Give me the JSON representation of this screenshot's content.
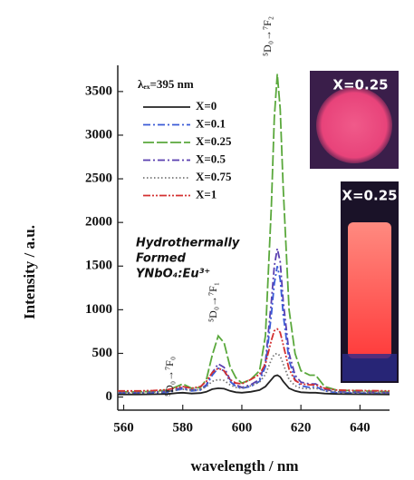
{
  "chart_data": {
    "type": "line",
    "xlabel": "wavelength / nm",
    "ylabel": "Intensity / a.u.",
    "legend_title": "λₑₓ=395 nm",
    "annotations": [
      "Hydrothermally",
      "Formed",
      "YNbO₄:Eu³⁺"
    ],
    "transitions": [
      "⁵D₀→⁷F₀",
      "⁵D₀→⁷F₁",
      "⁵D₀→⁷F₂"
    ],
    "xlim": [
      558,
      650
    ],
    "xticks": [
      560,
      580,
      600,
      620,
      640
    ],
    "ylim": [
      -150,
      3800
    ],
    "yticks": [
      0,
      500,
      1000,
      1500,
      2000,
      2500,
      3000,
      3500
    ],
    "x": [
      558,
      565,
      570,
      575,
      578,
      580,
      583,
      586,
      588,
      590,
      592,
      594,
      596,
      598,
      600,
      603,
      606,
      608,
      610,
      611,
      612,
      613,
      614,
      616,
      618,
      620,
      623,
      625,
      628,
      632,
      640,
      650
    ],
    "series": [
      {
        "name": "X=0",
        "color": "#222222",
        "dash": "solid",
        "values": [
          30,
          30,
          32,
          35,
          45,
          50,
          40,
          45,
          60,
          90,
          100,
          95,
          70,
          55,
          50,
          60,
          80,
          120,
          200,
          240,
          250,
          230,
          180,
          100,
          70,
          55,
          50,
          50,
          40,
          35,
          32,
          30
        ]
      },
      {
        "name": "X=0.1",
        "color": "#3b5bd6",
        "dash": "dashdot",
        "values": [
          40,
          40,
          45,
          55,
          80,
          95,
          70,
          80,
          130,
          250,
          330,
          300,
          180,
          120,
          100,
          120,
          180,
          350,
          950,
          1300,
          1500,
          1350,
          950,
          420,
          200,
          130,
          110,
          120,
          70,
          50,
          45,
          40
        ]
      },
      {
        "name": "X=0.25",
        "color": "#5aa83c",
        "dash": "longdash",
        "values": [
          60,
          60,
          65,
          80,
          120,
          150,
          100,
          110,
          200,
          480,
          700,
          620,
          350,
          220,
          160,
          200,
          300,
          700,
          2200,
          3200,
          3700,
          3300,
          2400,
          1000,
          500,
          300,
          250,
          250,
          120,
          80,
          70,
          60
        ]
      },
      {
        "name": "X=0.5",
        "color": "#5a3fb0",
        "dash": "dashdot",
        "values": [
          50,
          50,
          55,
          65,
          90,
          110,
          80,
          90,
          140,
          280,
          380,
          340,
          200,
          140,
          110,
          140,
          200,
          400,
          1100,
          1500,
          1700,
          1550,
          1100,
          500,
          250,
          170,
          150,
          150,
          90,
          60,
          55,
          50
        ]
      },
      {
        "name": "X=0.75",
        "color": "#777777",
        "dash": "dotted",
        "values": [
          50,
          50,
          55,
          60,
          80,
          90,
          75,
          85,
          120,
          180,
          200,
          190,
          140,
          110,
          100,
          130,
          170,
          260,
          430,
          490,
          500,
          470,
          380,
          200,
          130,
          100,
          95,
          100,
          75,
          60,
          55,
          50
        ]
      },
      {
        "name": "X=1",
        "color": "#d43030",
        "dash": "dashdotdot",
        "values": [
          70,
          70,
          75,
          85,
          110,
          120,
          100,
          120,
          180,
          280,
          330,
          300,
          200,
          160,
          150,
          200,
          260,
          380,
          650,
          760,
          780,
          740,
          600,
          320,
          190,
          150,
          140,
          140,
          100,
          80,
          75,
          70
        ]
      }
    ]
  },
  "insets": [
    {
      "label": "X=0.25"
    },
    {
      "label": "X=0.25"
    }
  ]
}
